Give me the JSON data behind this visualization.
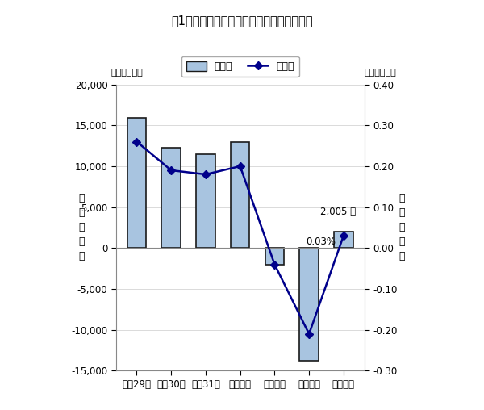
{
  "title": "図1　総人口の人口増減数及び増減率の推移",
  "categories": [
    "平成29年",
    "平成30年",
    "平成31年",
    "令和２年",
    "令和３年",
    "令和４年",
    "令和５年"
  ],
  "bar_values": [
    15900,
    12300,
    11500,
    13000,
    -2000,
    -13800,
    2005
  ],
  "line_values": [
    0.26,
    0.19,
    0.18,
    0.2,
    -0.04,
    -0.21,
    0.03
  ],
  "bar_color": "#a8c4e0",
  "bar_edge_color": "#1a1a1a",
  "line_color": "#00008B",
  "marker_color": "#00008B",
  "left_ylabel": "人\n口\n増\n減\n数",
  "right_ylabel": "人\n口\n増\n減\n率",
  "left_unit": "（単位：人）",
  "right_unit": "（単位：％）",
  "ylim_left": [
    -15000,
    20000
  ],
  "ylim_right": [
    -0.3,
    0.4
  ],
  "yticks_left": [
    -15000,
    -10000,
    -5000,
    0,
    5000,
    10000,
    15000,
    20000
  ],
  "yticks_right": [
    -0.3,
    -0.2,
    -0.1,
    0.0,
    0.1,
    0.2,
    0.3,
    0.4
  ],
  "annotation_value": "2,005 人",
  "annotation_rate": "0.03%",
  "legend_bar": "増減数",
  "legend_line": "増減率",
  "bg_color": "#ffffff",
  "plot_bg_color": "#ffffff"
}
